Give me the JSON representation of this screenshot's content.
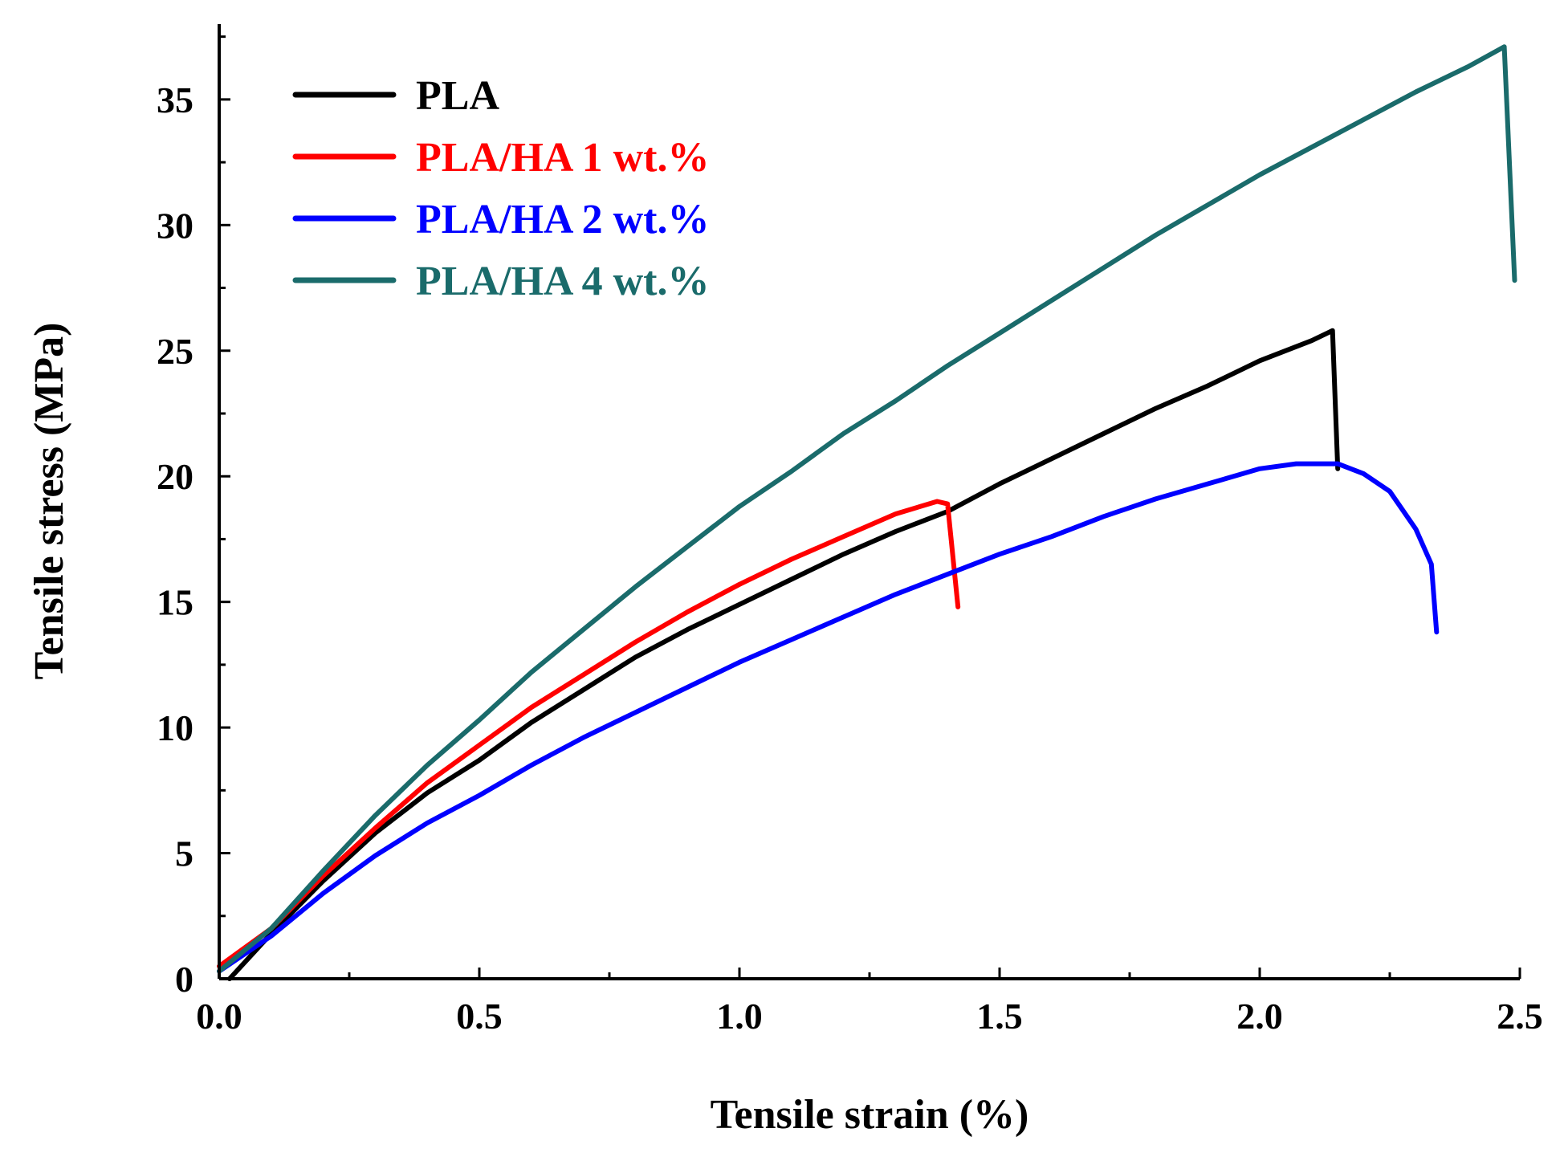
{
  "chart_data": {
    "type": "line",
    "title": "",
    "xlabel": "Tensile strain (%)",
    "ylabel": "Tensile stress (MPa)",
    "xlim": [
      0,
      2.5
    ],
    "ylim": [
      0,
      38
    ],
    "x_ticks": [
      0.0,
      0.5,
      1.0,
      1.5,
      2.0,
      2.5
    ],
    "x_tick_labels": [
      "0.0",
      "0.5",
      "1.0",
      "1.5",
      "2.0",
      "2.5"
    ],
    "y_ticks": [
      0,
      5,
      10,
      15,
      20,
      25,
      30,
      35
    ],
    "y_tick_labels": [
      "0",
      "5",
      "10",
      "15",
      "20",
      "25",
      "30",
      "35"
    ],
    "legend_position": "top-left",
    "series": [
      {
        "name": "PLA",
        "color": "#000000",
        "points": [
          [
            0.02,
            0
          ],
          [
            0.1,
            1.8
          ],
          [
            0.2,
            3.9
          ],
          [
            0.3,
            5.8
          ],
          [
            0.4,
            7.4
          ],
          [
            0.5,
            8.7
          ],
          [
            0.6,
            10.2
          ],
          [
            0.7,
            11.5
          ],
          [
            0.8,
            12.8
          ],
          [
            0.9,
            13.9
          ],
          [
            1.0,
            14.9
          ],
          [
            1.1,
            15.9
          ],
          [
            1.2,
            16.9
          ],
          [
            1.3,
            17.8
          ],
          [
            1.4,
            18.6
          ],
          [
            1.5,
            19.7
          ],
          [
            1.6,
            20.7
          ],
          [
            1.7,
            21.7
          ],
          [
            1.8,
            22.7
          ],
          [
            1.9,
            23.6
          ],
          [
            2.0,
            24.6
          ],
          [
            2.1,
            25.4
          ],
          [
            2.14,
            25.8
          ],
          [
            2.15,
            20.3
          ]
        ]
      },
      {
        "name": "PLA/HA 1 wt.%",
        "color": "#ff0000",
        "points": [
          [
            0,
            0.5
          ],
          [
            0.1,
            2.0
          ],
          [
            0.2,
            4.1
          ],
          [
            0.3,
            6.0
          ],
          [
            0.4,
            7.8
          ],
          [
            0.5,
            9.3
          ],
          [
            0.6,
            10.8
          ],
          [
            0.7,
            12.1
          ],
          [
            0.8,
            13.4
          ],
          [
            0.9,
            14.6
          ],
          [
            1.0,
            15.7
          ],
          [
            1.1,
            16.7
          ],
          [
            1.2,
            17.6
          ],
          [
            1.3,
            18.5
          ],
          [
            1.38,
            19.0
          ],
          [
            1.4,
            18.9
          ],
          [
            1.42,
            14.8
          ]
        ]
      },
      {
        "name": "PLA/HA 2 wt.%",
        "color": "#0000ff",
        "points": [
          [
            0,
            0.3
          ],
          [
            0.1,
            1.7
          ],
          [
            0.2,
            3.4
          ],
          [
            0.3,
            4.9
          ],
          [
            0.4,
            6.2
          ],
          [
            0.5,
            7.3
          ],
          [
            0.6,
            8.5
          ],
          [
            0.7,
            9.6
          ],
          [
            0.8,
            10.6
          ],
          [
            0.9,
            11.6
          ],
          [
            1.0,
            12.6
          ],
          [
            1.1,
            13.5
          ],
          [
            1.2,
            14.4
          ],
          [
            1.3,
            15.3
          ],
          [
            1.4,
            16.1
          ],
          [
            1.5,
            16.9
          ],
          [
            1.6,
            17.6
          ],
          [
            1.7,
            18.4
          ],
          [
            1.8,
            19.1
          ],
          [
            1.9,
            19.7
          ],
          [
            2.0,
            20.3
          ],
          [
            2.07,
            20.5
          ],
          [
            2.15,
            20.5
          ],
          [
            2.2,
            20.1
          ],
          [
            2.25,
            19.4
          ],
          [
            2.3,
            17.9
          ],
          [
            2.33,
            16.5
          ],
          [
            2.34,
            13.8
          ]
        ]
      },
      {
        "name": "PLA/HA 4 wt.%",
        "color": "#1a6b6b",
        "points": [
          [
            0,
            0.3
          ],
          [
            0.1,
            2.0
          ],
          [
            0.2,
            4.3
          ],
          [
            0.3,
            6.5
          ],
          [
            0.4,
            8.5
          ],
          [
            0.5,
            10.3
          ],
          [
            0.6,
            12.2
          ],
          [
            0.7,
            13.9
          ],
          [
            0.8,
            15.6
          ],
          [
            0.9,
            17.2
          ],
          [
            1.0,
            18.8
          ],
          [
            1.1,
            20.2
          ],
          [
            1.2,
            21.7
          ],
          [
            1.3,
            23.0
          ],
          [
            1.4,
            24.4
          ],
          [
            1.5,
            25.7
          ],
          [
            1.6,
            27.0
          ],
          [
            1.7,
            28.3
          ],
          [
            1.8,
            29.6
          ],
          [
            1.9,
            30.8
          ],
          [
            2.0,
            32.0
          ],
          [
            2.1,
            33.1
          ],
          [
            2.2,
            34.2
          ],
          [
            2.3,
            35.3
          ],
          [
            2.4,
            36.3
          ],
          [
            2.47,
            37.1
          ],
          [
            2.49,
            27.8
          ]
        ]
      }
    ]
  }
}
